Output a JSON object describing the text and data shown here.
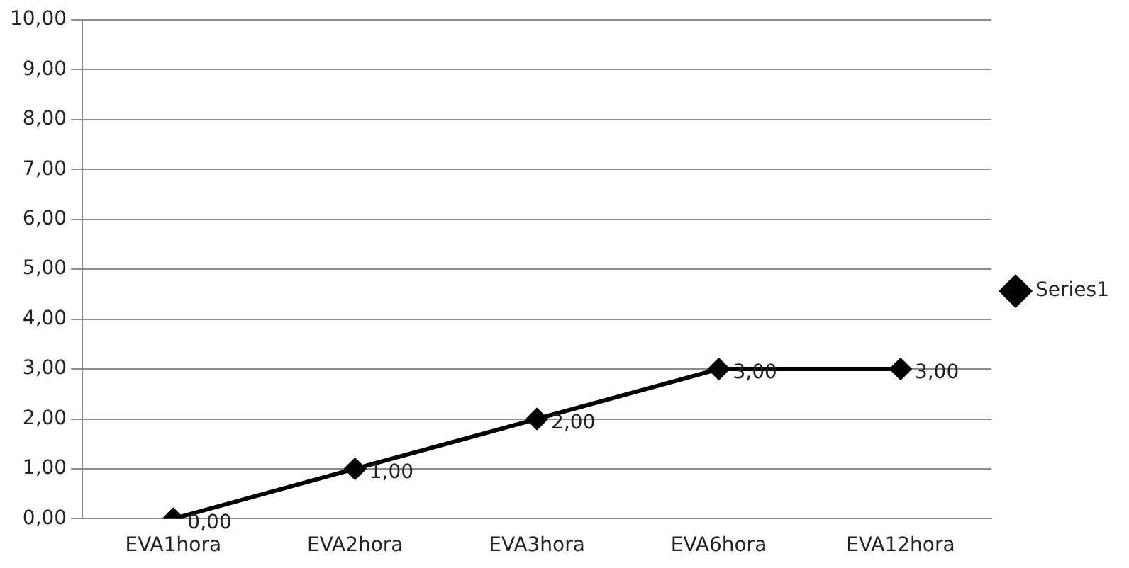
{
  "chart_data": {
    "type": "line",
    "categories": [
      "EVA1hora",
      "EVA2hora",
      "EVA3hora",
      "EVA6hora",
      "EVA12hora"
    ],
    "series": [
      {
        "name": "Series1",
        "color": "#000000",
        "values": [
          0,
          1,
          2,
          3,
          3
        ],
        "value_labels": [
          "0,00",
          "1,00",
          "2,00",
          "3,00",
          "3,00"
        ]
      }
    ],
    "ylim": [
      0,
      10
    ],
    "yticks": [
      {
        "value": 0,
        "label": "0,00"
      },
      {
        "value": 1,
        "label": "1,00"
      },
      {
        "value": 2,
        "label": "2,00"
      },
      {
        "value": 3,
        "label": "3,00"
      },
      {
        "value": 4,
        "label": "4,00"
      },
      {
        "value": 5,
        "label": "5,00"
      },
      {
        "value": 6,
        "label": "6,00"
      },
      {
        "value": 7,
        "label": "7,00"
      },
      {
        "value": 8,
        "label": "8,00"
      },
      {
        "value": 9,
        "label": "9,00"
      },
      {
        "value": 10,
        "label": "10,00"
      }
    ],
    "grid": "y",
    "legend": "right",
    "marker": "diamond",
    "line_style": "solid"
  }
}
